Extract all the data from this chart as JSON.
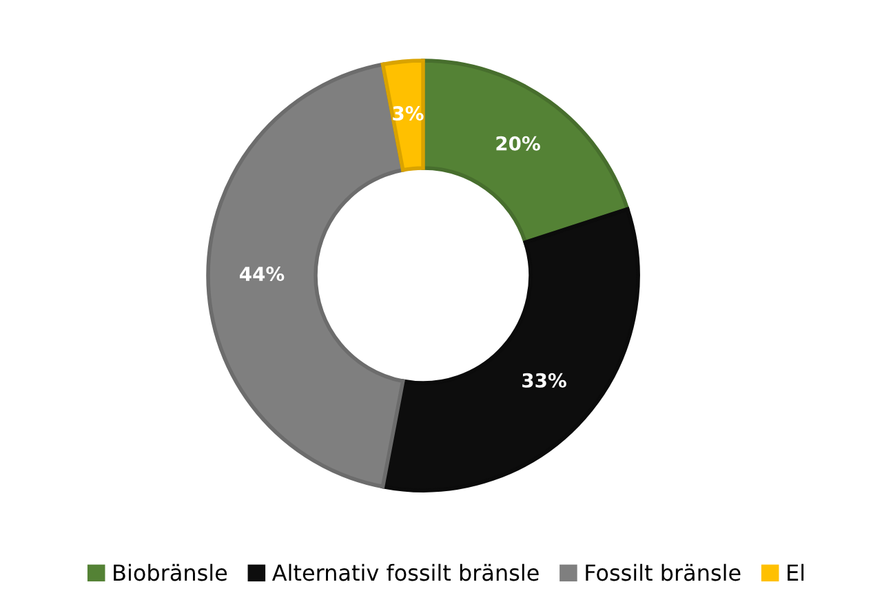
{
  "chart_data": {
    "type": "donut",
    "categories": [
      "Biobränsle",
      "Alternativ fossilt bränsle",
      "Fossilt bränsle",
      "El"
    ],
    "values": [
      20,
      33,
      44,
      3
    ],
    "value_labels": [
      "20%",
      "33%",
      "44%",
      "3%"
    ],
    "colors": [
      "#548235",
      "#0d0d0d",
      "#7f7f7f",
      "#ffc000"
    ],
    "legend": "bottom"
  }
}
